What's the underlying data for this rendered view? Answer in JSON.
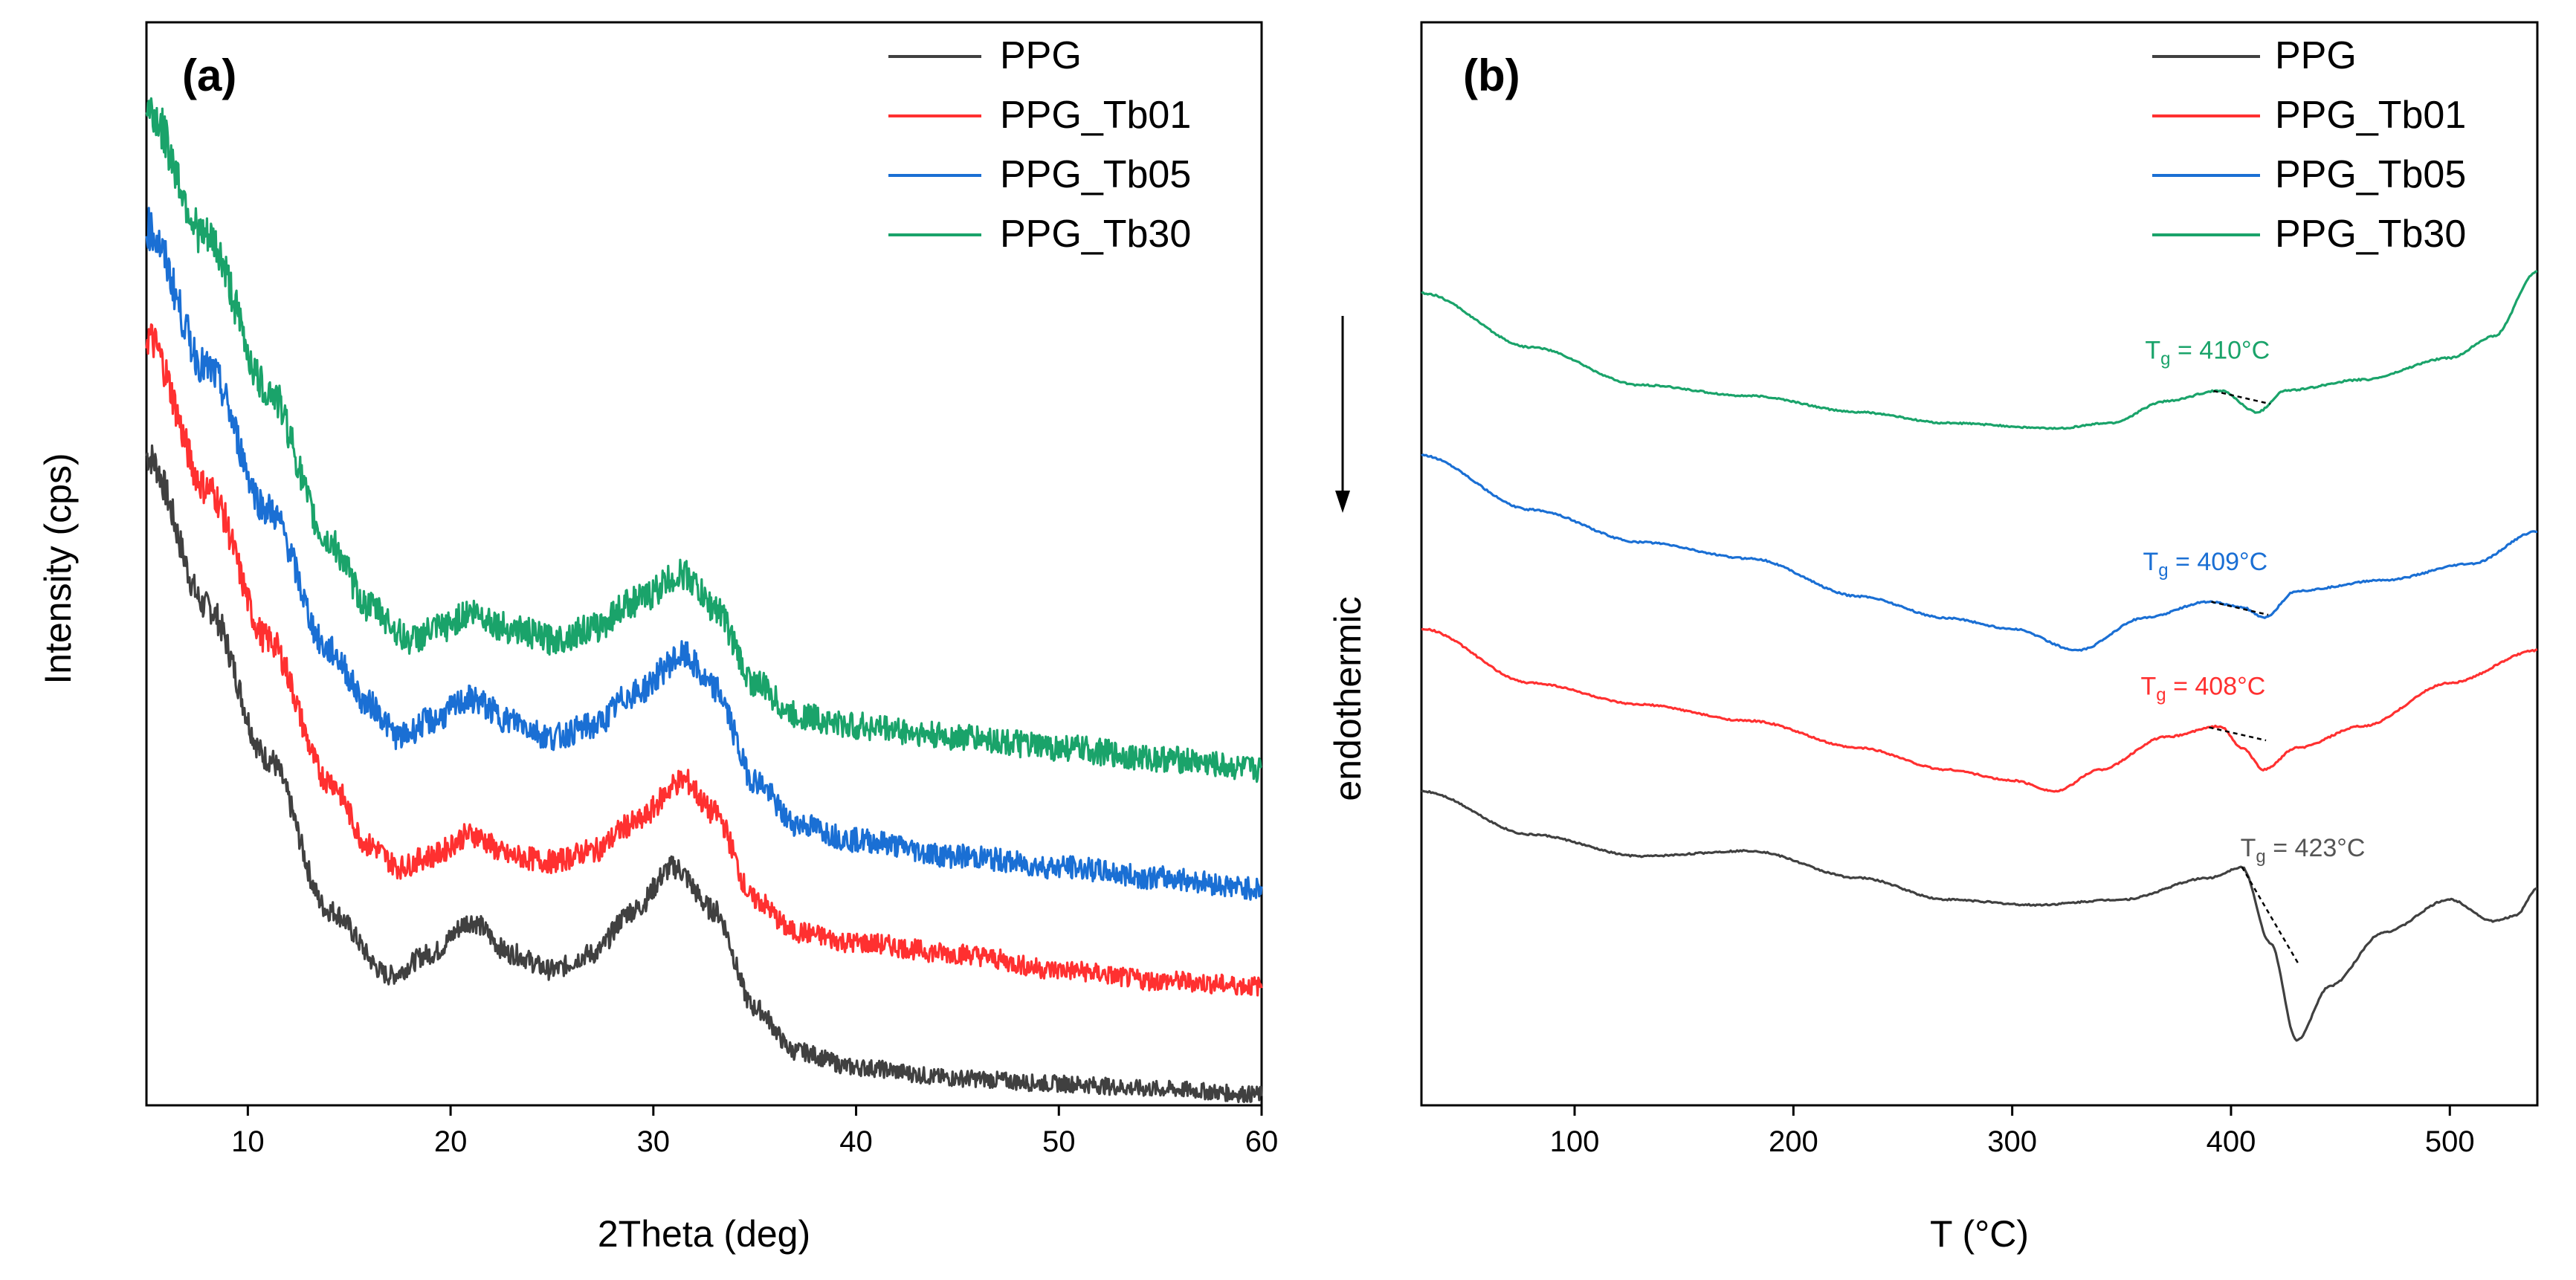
{
  "chart_data": [
    {
      "type": "line",
      "panel_label": "(a)",
      "xlabel": "2Theta (deg)",
      "ylabel": "Intensity (cps)",
      "xlim": [
        5,
        60
      ],
      "xticks": [
        10,
        20,
        30,
        40,
        50,
        60
      ],
      "ylim": [
        0,
        100
      ],
      "y_ticks_shown": false,
      "legend_position": "top-right",
      "series": [
        {
          "name": "PPG",
          "color": "#404040",
          "points": [
            [
              5,
              60
            ],
            [
              8,
              46
            ],
            [
              11,
              32
            ],
            [
              14,
              18
            ],
            [
              17,
              12
            ],
            [
              19,
              14
            ],
            [
              21,
              17
            ],
            [
              23,
              14
            ],
            [
              25,
              12.5
            ],
            [
              27,
              14
            ],
            [
              29,
              18
            ],
            [
              31,
              22
            ],
            [
              33,
              18
            ],
            [
              35,
              9
            ],
            [
              37,
              5
            ],
            [
              40,
              3.5
            ],
            [
              45,
              2.5
            ],
            [
              50,
              2
            ],
            [
              55,
              1.5
            ],
            [
              60,
              1
            ]
          ]
        },
        {
          "name": "PPG_Tb01",
          "color": "#ff3030",
          "points": [
            [
              5,
              71
            ],
            [
              8,
              57
            ],
            [
              11,
              43
            ],
            [
              14,
              30
            ],
            [
              16,
              24
            ],
            [
              17.5,
              22
            ],
            [
              19,
              23
            ],
            [
              21,
              25
            ],
            [
              23,
              23
            ],
            [
              25,
              22.5
            ],
            [
              27,
              23.5
            ],
            [
              29,
              26
            ],
            [
              31.5,
              30
            ],
            [
              33,
              27
            ],
            [
              35,
              19
            ],
            [
              37,
              16
            ],
            [
              40,
              15
            ],
            [
              45,
              14
            ],
            [
              50,
              12.5
            ],
            [
              55,
              11.5
            ],
            [
              60,
              11
            ]
          ]
        },
        {
          "name": "PPG_Tb05",
          "color": "#1a6fd4",
          "points": [
            [
              5,
              81
            ],
            [
              8,
              68
            ],
            [
              11,
              55
            ],
            [
              14,
              42
            ],
            [
              16,
              37
            ],
            [
              17.5,
              34
            ],
            [
              19,
              35.5
            ],
            [
              21,
              37.5
            ],
            [
              23,
              35.5
            ],
            [
              25,
              34
            ],
            [
              27,
              35
            ],
            [
              29,
              38
            ],
            [
              31.5,
              41.5
            ],
            [
              33,
              38.5
            ],
            [
              35,
              30
            ],
            [
              37,
              26
            ],
            [
              40,
              24.5
            ],
            [
              45,
              23
            ],
            [
              50,
              22
            ],
            [
              55,
              21
            ],
            [
              60,
              20
            ]
          ]
        },
        {
          "name": "PPG_Tb30",
          "color": "#1aa36a",
          "points": [
            [
              5,
              92
            ],
            [
              8,
              80
            ],
            [
              11,
              66
            ],
            [
              14,
              52
            ],
            [
              16,
              46
            ],
            [
              18,
              43
            ],
            [
              19.5,
              44
            ],
            [
              21,
              45.5
            ],
            [
              23,
              44
            ],
            [
              25,
              43
            ],
            [
              27,
              44
            ],
            [
              29,
              46.5
            ],
            [
              31.5,
              49
            ],
            [
              33,
              46
            ],
            [
              35,
              39
            ],
            [
              37,
              36
            ],
            [
              40,
              35
            ],
            [
              45,
              34
            ],
            [
              50,
              33
            ],
            [
              55,
              32
            ],
            [
              60,
              31
            ]
          ]
        }
      ]
    },
    {
      "type": "line",
      "panel_label": "(b)",
      "xlabel": "T (°C)",
      "ylabel": "endothermic",
      "xlim": [
        30,
        540
      ],
      "xticks": [
        100,
        200,
        300,
        400,
        500
      ],
      "ylim": [
        0,
        100
      ],
      "y_ticks_shown": false,
      "legend_position": "top-right",
      "arrow": "down",
      "series": [
        {
          "name": "PPG",
          "color": "#404040",
          "annotation": "T",
          "annotation_sub": "g",
          "annotation_value": " = 423°C",
          "points": [
            [
              30,
              29
            ],
            [
              80,
              25
            ],
            [
              130,
              23
            ],
            [
              180,
              23.5
            ],
            [
              230,
              21
            ],
            [
              270,
              19
            ],
            [
              310,
              18.5
            ],
            [
              350,
              19
            ],
            [
              390,
              21
            ],
            [
              405,
              22
            ],
            [
              418,
              15
            ],
            [
              430,
              6
            ],
            [
              445,
              11
            ],
            [
              470,
              16
            ],
            [
              500,
              19
            ],
            [
              520,
              17
            ],
            [
              530,
              17.5
            ],
            [
              540,
              20
            ]
          ]
        },
        {
          "name": "PPG_Tb01",
          "color": "#ff3030",
          "annotation": "T",
          "annotation_sub": "g",
          "annotation_value": " = 408°C",
          "points": [
            [
              30,
              44
            ],
            [
              80,
              39
            ],
            [
              130,
              37
            ],
            [
              180,
              35.5
            ],
            [
              230,
              33
            ],
            [
              270,
              31
            ],
            [
              300,
              30
            ],
            [
              320,
              29
            ],
            [
              340,
              31
            ],
            [
              370,
              34
            ],
            [
              395,
              35
            ],
            [
              405,
              33
            ],
            [
              415,
              31
            ],
            [
              430,
              33
            ],
            [
              460,
              35
            ],
            [
              500,
              39
            ],
            [
              540,
              42
            ]
          ]
        },
        {
          "name": "PPG_Tb05",
          "color": "#1a6fd4",
          "annotation": "T",
          "annotation_sub": "g",
          "annotation_value": " = 409°C",
          "points": [
            [
              30,
              60
            ],
            [
              80,
              55
            ],
            [
              130,
              52
            ],
            [
              180,
              50.5
            ],
            [
              230,
              47
            ],
            [
              270,
              45
            ],
            [
              300,
              44
            ],
            [
              330,
              42
            ],
            [
              360,
              45
            ],
            [
              390,
              46.5
            ],
            [
              405,
              46
            ],
            [
              415,
              45
            ],
            [
              430,
              47.5
            ],
            [
              470,
              48.5
            ],
            [
              510,
              50
            ],
            [
              540,
              53
            ]
          ]
        },
        {
          "name": "PPG_Tb30",
          "color": "#1aa36a",
          "annotation": "T",
          "annotation_sub": "g",
          "annotation_value": " = 410°C",
          "points": [
            [
              30,
              75
            ],
            [
              80,
              70
            ],
            [
              130,
              66.5
            ],
            [
              180,
              65.5
            ],
            [
              230,
              64
            ],
            [
              270,
              63
            ],
            [
              320,
              62.5
            ],
            [
              345,
              63
            ],
            [
              370,
              65
            ],
            [
              395,
              66
            ],
            [
              412,
              64
            ],
            [
              425,
              66
            ],
            [
              460,
              67
            ],
            [
              500,
              69
            ],
            [
              520,
              71
            ],
            [
              540,
              77
            ]
          ]
        }
      ]
    }
  ]
}
